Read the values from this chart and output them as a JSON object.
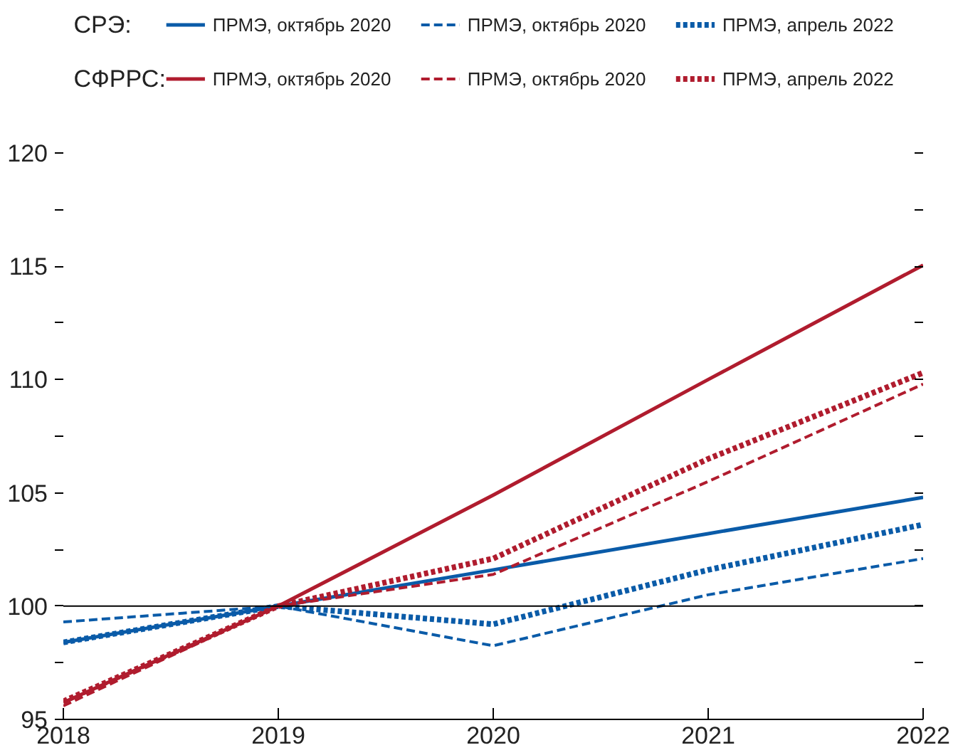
{
  "chart_data": {
    "type": "line",
    "x": [
      2018,
      2019,
      2020,
      2021,
      2022
    ],
    "xlim": [
      2018,
      2022
    ],
    "xticks": [
      2018,
      2019,
      2020,
      2021,
      2022
    ],
    "ylim": [
      95,
      120
    ],
    "yticks": [
      95,
      {
        "value": 97.5,
        "label": null
      },
      100,
      {
        "value": 102.5,
        "label": null
      },
      105,
      {
        "value": 107.5,
        "label": null
      },
      110,
      {
        "value": 112.5,
        "label": null
      },
      115,
      {
        "value": 117.5,
        "label": null
      },
      120
    ],
    "annotations": [
      "СРЭ:",
      "СФРРС:"
    ],
    "ref_lines": [
      {
        "axis": "y",
        "value": 100,
        "color": "#000000"
      }
    ],
    "legend": "top",
    "grid": false,
    "series": [
      {
        "name": "ПРМЭ, октябрь 2020",
        "color": "#0a5ba8",
        "line_style": "solid",
        "values": [
          98.4,
          100,
          101.6,
          103.2,
          104.8
        ]
      },
      {
        "name": "ПРМЭ, октябрь 2020",
        "color": "#0a5ba8",
        "line_style": "dashed",
        "values": [
          99.3,
          100,
          98.25,
          100.5,
          102.1
        ]
      },
      {
        "name": "ПРМЭ, апрель 2022",
        "color": "#0a5ba8",
        "line_style": "dotted",
        "values": [
          98.4,
          100,
          99.2,
          101.6,
          103.6
        ]
      },
      {
        "name": "ПРМЭ, октябрь 2020",
        "color": "#b01c2e",
        "line_style": "solid",
        "values": [
          95.75,
          100,
          104.9,
          110.0,
          115.05
        ]
      },
      {
        "name": "ПРМЭ, октябрь 2020",
        "color": "#b01c2e",
        "line_style": "dashed",
        "values": [
          95.6,
          100,
          101.4,
          105.5,
          109.8
        ]
      },
      {
        "name": "ПРМЭ, апрель 2022",
        "color": "#b01c2e",
        "line_style": "dotted",
        "values": [
          95.8,
          100,
          102.1,
          106.5,
          110.3
        ]
      }
    ]
  }
}
